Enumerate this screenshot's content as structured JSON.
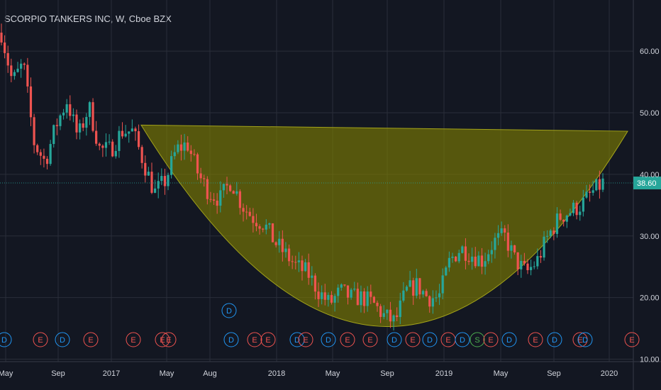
{
  "chart_title": "SCORPIO TANKERS INC, W, Cboe BZX",
  "colors": {
    "background": "#131722",
    "grid": "#2a2e39",
    "text": "#d1d4dc",
    "up": "#26a69a",
    "down": "#ef5350",
    "cup_fill": "#808000",
    "cup_stroke": "#a3a31a",
    "price_line": "#26a69a",
    "dividend_marker": "#2196f3",
    "earnings_marker": "#ef5350",
    "split_marker": "#4caf50"
  },
  "chart_data": {
    "type": "candlestick",
    "title": "SCORPIO TANKERS INC, W, Cboe BZX",
    "x_ticks": [
      "May",
      "Sep",
      "2017",
      "May",
      "Aug",
      "2018",
      "May",
      "Sep",
      "2019",
      "May",
      "Sep",
      "2020"
    ],
    "y_ticks": [
      10,
      20,
      30,
      40,
      50,
      60
    ],
    "y_tick_labels": [
      "10.00",
      "20.00",
      "30.00",
      "40.00",
      "50.00",
      "60.00"
    ],
    "ylim": [
      9.6,
      68.3
    ],
    "y_scale": "linear",
    "grid": true,
    "last_price": 38.6,
    "last_price_label": "38.60",
    "series": [
      {
        "type": "candles",
        "path": [
          [
            0,
            63
          ],
          [
            1,
            55
          ],
          [
            2,
            58
          ],
          [
            3,
            45
          ],
          [
            4,
            42
          ],
          [
            5,
            48
          ],
          [
            6,
            52
          ],
          [
            7,
            46
          ],
          [
            8,
            51
          ],
          [
            9,
            44
          ],
          [
            10,
            44
          ],
          [
            11,
            47
          ],
          [
            12,
            47
          ],
          [
            13,
            42
          ],
          [
            14,
            37
          ],
          [
            15,
            39
          ],
          [
            16,
            44
          ],
          [
            17,
            45
          ],
          [
            18,
            40
          ],
          [
            19,
            37
          ],
          [
            20,
            36
          ],
          [
            21,
            39
          ],
          [
            22,
            35
          ],
          [
            23,
            33
          ],
          [
            24,
            32
          ],
          [
            25,
            29
          ],
          [
            26,
            27
          ],
          [
            27,
            25
          ],
          [
            28,
            24
          ],
          [
            29,
            21
          ],
          [
            30,
            19
          ],
          [
            31,
            21
          ],
          [
            32,
            20
          ],
          [
            33,
            20
          ],
          [
            34,
            19
          ],
          [
            35,
            17
          ],
          [
            36,
            16
          ],
          [
            37,
            21
          ],
          [
            38,
            22
          ],
          [
            39,
            20
          ],
          [
            40,
            20
          ],
          [
            41,
            26
          ],
          [
            42,
            28
          ],
          [
            43,
            27
          ],
          [
            44,
            26
          ],
          [
            45,
            29
          ],
          [
            46,
            30
          ],
          [
            47,
            26
          ],
          [
            48,
            24
          ],
          [
            49,
            26
          ],
          [
            50,
            30
          ],
          [
            51,
            33
          ],
          [
            52,
            34
          ],
          [
            53,
            35
          ],
          [
            54,
            37
          ],
          [
            55,
            38.6
          ]
        ],
        "x_at": {
          "May": 0,
          "Sep": 7.5,
          "2017": 15,
          "May_2017": 22.7,
          "Aug": 28.4,
          "2018": 37.5,
          "May_2018": 45.3,
          "Sep_2018": 52.8,
          "2019": 60.5,
          "May_2019": 68.3,
          "Sep_2019": 75.8,
          "2020": 83.5
        }
      }
    ],
    "cup": {
      "type": "area",
      "name": "",
      "points": [
        [
          0,
          48
        ],
        [
          47,
          15.3
        ],
        [
          100,
          47
        ]
      ],
      "rim_left": 48,
      "rim_right": 47,
      "bottom": 15.3
    },
    "event_markers": [
      "D",
      "E",
      "D",
      "E",
      "E",
      "E",
      "E",
      "D",
      "E",
      "E",
      "D",
      "E",
      "D",
      "E",
      "E",
      "D",
      "E",
      "D",
      "E",
      "D",
      "S",
      "E",
      "D",
      "E",
      "D",
      "E",
      "D",
      "E",
      "D",
      "E",
      "D",
      "E",
      "E"
    ],
    "event_marker_floating": "D"
  }
}
